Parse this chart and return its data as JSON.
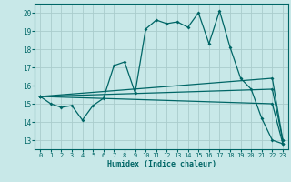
{
  "background_color": "#c8e8e8",
  "grid_color": "#aacccc",
  "line_color": "#006666",
  "xlabel": "Humidex (Indice chaleur)",
  "xlim": [
    -0.5,
    23.5
  ],
  "ylim": [
    12.5,
    20.5
  ],
  "yticks": [
    13,
    14,
    15,
    16,
    17,
    18,
    19,
    20
  ],
  "xticks": [
    0,
    1,
    2,
    3,
    4,
    5,
    6,
    7,
    8,
    9,
    10,
    11,
    12,
    13,
    14,
    15,
    16,
    17,
    18,
    19,
    20,
    21,
    22,
    23
  ],
  "series1": [
    [
      0,
      15.4
    ],
    [
      1,
      15.0
    ],
    [
      2,
      14.8
    ],
    [
      3,
      14.9
    ],
    [
      4,
      14.1
    ],
    [
      5,
      14.9
    ],
    [
      6,
      15.3
    ],
    [
      7,
      17.1
    ],
    [
      8,
      17.3
    ],
    [
      9,
      15.6
    ],
    [
      10,
      19.1
    ],
    [
      11,
      19.6
    ],
    [
      12,
      19.4
    ],
    [
      13,
      19.5
    ],
    [
      14,
      19.2
    ],
    [
      15,
      20.0
    ],
    [
      16,
      18.3
    ],
    [
      17,
      20.1
    ],
    [
      18,
      18.1
    ],
    [
      19,
      16.4
    ],
    [
      20,
      15.8
    ],
    [
      21,
      14.2
    ],
    [
      22,
      13.0
    ],
    [
      23,
      12.8
    ]
  ],
  "series2": [
    [
      0,
      15.4
    ],
    [
      22,
      16.4
    ],
    [
      23,
      13.0
    ]
  ],
  "series3": [
    [
      0,
      15.4
    ],
    [
      22,
      15.8
    ],
    [
      23,
      13.0
    ]
  ],
  "series4": [
    [
      0,
      15.4
    ],
    [
      22,
      15.0
    ],
    [
      23,
      12.8
    ]
  ]
}
